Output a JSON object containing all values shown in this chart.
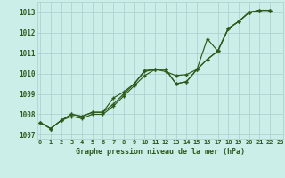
{
  "title": "Graphe pression niveau de la mer (hPa)",
  "bg_color": "#cceee8",
  "grid_color": "#aacccc",
  "line_color": "#2d5a1b",
  "xlim": [
    -0.3,
    23.3
  ],
  "ylim": [
    1006.8,
    1013.5
  ],
  "yticks": [
    1007,
    1008,
    1009,
    1010,
    1011,
    1012,
    1013
  ],
  "xticks": [
    0,
    1,
    2,
    3,
    4,
    5,
    6,
    7,
    8,
    9,
    10,
    11,
    12,
    13,
    14,
    15,
    16,
    17,
    18,
    19,
    20,
    21,
    22,
    23
  ],
  "series1_x": [
    0,
    1,
    2,
    3,
    4,
    5,
    6,
    7,
    8,
    9,
    10,
    11,
    12,
    13,
    14,
    15,
    16,
    17,
    18,
    19,
    20,
    21,
    22
  ],
  "series1_y": [
    1007.6,
    1007.3,
    1007.7,
    1008.0,
    1007.9,
    1008.1,
    1008.1,
    1008.8,
    1009.1,
    1009.5,
    1010.15,
    1010.2,
    1010.2,
    1009.5,
    1009.6,
    1010.2,
    1011.7,
    1011.1,
    1012.2,
    1012.55,
    1013.0,
    1013.1,
    1013.1
  ],
  "series2_x": [
    0,
    1,
    2,
    3,
    4,
    5,
    6,
    7,
    8,
    9,
    10,
    11,
    12,
    13,
    14,
    15,
    16,
    17,
    18,
    19,
    20,
    21,
    22
  ],
  "series2_y": [
    1007.6,
    1007.3,
    1007.7,
    1008.0,
    1007.9,
    1008.1,
    1008.1,
    1008.5,
    1009.0,
    1009.5,
    1010.1,
    1010.2,
    1010.2,
    1009.5,
    1009.6,
    1010.2,
    1010.7,
    1011.1,
    1012.2,
    1012.55,
    1013.0,
    1013.1,
    1013.1
  ],
  "series3_x": [
    0,
    1,
    2,
    3,
    4,
    5,
    6,
    7,
    8,
    9,
    10,
    11,
    12,
    13,
    14,
    15,
    16,
    17,
    18,
    19,
    20,
    21,
    22
  ],
  "series3_y": [
    1007.6,
    1007.3,
    1007.7,
    1007.9,
    1007.8,
    1008.0,
    1008.0,
    1008.4,
    1008.9,
    1009.4,
    1009.9,
    1010.2,
    1010.1,
    1009.9,
    1009.95,
    1010.2,
    1010.7,
    1011.1,
    1012.2,
    1012.55,
    1013.0,
    1013.1,
    1013.1
  ],
  "xlabel_fontsize": 6.0,
  "ytick_fontsize": 5.5,
  "xtick_fontsize": 5.0,
  "linewidth": 0.85,
  "markersize": 2.5
}
